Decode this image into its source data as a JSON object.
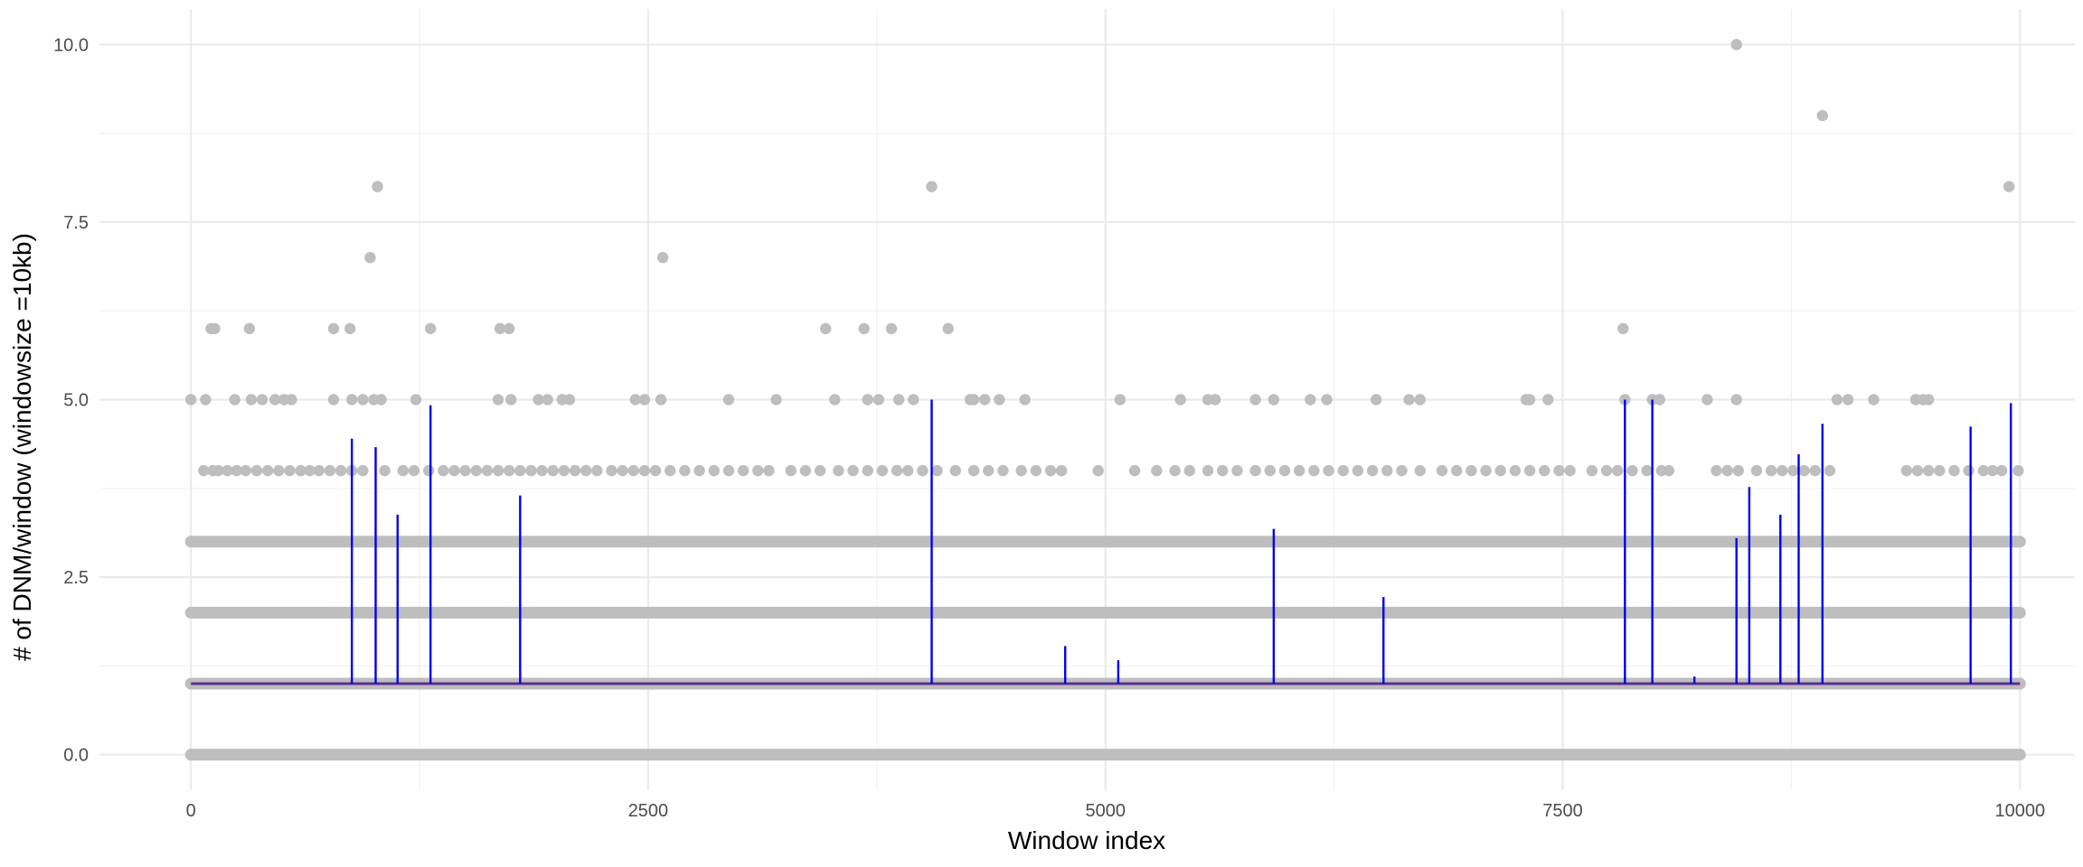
{
  "chart_data": {
    "type": "scatter",
    "title": "",
    "xlabel": "Window index",
    "ylabel": "# of DNM/window (windowsize =10kb)",
    "xlim": [
      -500,
      10300
    ],
    "ylim": [
      -0.5,
      10.5
    ],
    "x_ticks": [
      0,
      2500,
      5000,
      7500,
      10000
    ],
    "x_tick_labels": [
      "0",
      "2500",
      "5000",
      "7500",
      "10000"
    ],
    "y_ticks": [
      0,
      2.5,
      5,
      7.5,
      10
    ],
    "y_tick_labels": [
      "0.0",
      "2.5",
      "5.0",
      "7.5",
      "10.0"
    ],
    "grid": true,
    "colors": {
      "points": "#bebebe",
      "spikes": "#0000ee",
      "baseline": "#5c2d91",
      "grid": "#ebebeb"
    },
    "baseline_value": 1,
    "dense_levels": [
      0,
      1,
      2,
      3
    ],
    "series": [
      {
        "type": "scatter",
        "points": [
          [
            0,
            5
          ],
          [
            80,
            5
          ],
          [
            110,
            6
          ],
          [
            130,
            6
          ],
          [
            240,
            5
          ],
          [
            320,
            6
          ],
          [
            330,
            5
          ],
          [
            390,
            5
          ],
          [
            460,
            5
          ],
          [
            510,
            5
          ],
          [
            550,
            5
          ],
          [
            780,
            5
          ],
          [
            780,
            6
          ],
          [
            870,
            6
          ],
          [
            880,
            5
          ],
          [
            940,
            5
          ],
          [
            980,
            7
          ],
          [
            1000,
            5
          ],
          [
            1020,
            8
          ],
          [
            1040,
            5
          ],
          [
            1230,
            5
          ],
          [
            1310,
            6
          ],
          [
            1680,
            5
          ],
          [
            1690,
            6
          ],
          [
            1740,
            6
          ],
          [
            1750,
            5
          ],
          [
            1900,
            5
          ],
          [
            1950,
            5
          ],
          [
            2030,
            5
          ],
          [
            2070,
            5
          ],
          [
            2430,
            5
          ],
          [
            2480,
            5
          ],
          [
            2570,
            5
          ],
          [
            2580,
            7
          ],
          [
            2940,
            5
          ],
          [
            3200,
            5
          ],
          [
            3470,
            6
          ],
          [
            3520,
            5
          ],
          [
            3680,
            6
          ],
          [
            3700,
            5
          ],
          [
            3760,
            5
          ],
          [
            3830,
            6
          ],
          [
            3870,
            5
          ],
          [
            3950,
            5
          ],
          [
            4050,
            8
          ],
          [
            4140,
            6
          ],
          [
            4260,
            5
          ],
          [
            4280,
            5
          ],
          [
            4340,
            5
          ],
          [
            4420,
            5
          ],
          [
            4560,
            5
          ],
          [
            5080,
            5
          ],
          [
            5410,
            5
          ],
          [
            5560,
            5
          ],
          [
            5600,
            5
          ],
          [
            5820,
            5
          ],
          [
            5920,
            5
          ],
          [
            6120,
            5
          ],
          [
            6210,
            5
          ],
          [
            6480,
            5
          ],
          [
            6660,
            5
          ],
          [
            6720,
            5
          ],
          [
            7300,
            5
          ],
          [
            7320,
            5
          ],
          [
            7420,
            5
          ],
          [
            7830,
            6
          ],
          [
            7840,
            5
          ],
          [
            7990,
            5
          ],
          [
            8030,
            5
          ],
          [
            8290,
            5
          ],
          [
            8450,
            10
          ],
          [
            8450,
            5
          ],
          [
            8920,
            9
          ],
          [
            9000,
            5
          ],
          [
            9060,
            5
          ],
          [
            9200,
            5
          ],
          [
            9430,
            5
          ],
          [
            9470,
            5
          ],
          [
            9500,
            5
          ],
          [
            9940,
            8
          ],
          [
            70,
            4
          ],
          [
            120,
            4
          ],
          [
            150,
            4
          ],
          [
            200,
            4
          ],
          [
            250,
            4
          ],
          [
            300,
            4
          ],
          [
            360,
            4
          ],
          [
            420,
            4
          ],
          [
            480,
            4
          ],
          [
            540,
            4
          ],
          [
            600,
            4
          ],
          [
            650,
            4
          ],
          [
            700,
            4
          ],
          [
            760,
            4
          ],
          [
            820,
            4
          ],
          [
            880,
            4
          ],
          [
            940,
            4
          ],
          [
            1060,
            4
          ],
          [
            1160,
            4
          ],
          [
            1220,
            4
          ],
          [
            1300,
            4
          ],
          [
            1380,
            4
          ],
          [
            1440,
            4
          ],
          [
            1500,
            4
          ],
          [
            1560,
            4
          ],
          [
            1620,
            4
          ],
          [
            1680,
            4
          ],
          [
            1740,
            4
          ],
          [
            1800,
            4
          ],
          [
            1860,
            4
          ],
          [
            1920,
            4
          ],
          [
            1980,
            4
          ],
          [
            2040,
            4
          ],
          [
            2100,
            4
          ],
          [
            2160,
            4
          ],
          [
            2220,
            4
          ],
          [
            2300,
            4
          ],
          [
            2360,
            4
          ],
          [
            2420,
            4
          ],
          [
            2480,
            4
          ],
          [
            2540,
            4
          ],
          [
            2620,
            4
          ],
          [
            2700,
            4
          ],
          [
            2780,
            4
          ],
          [
            2860,
            4
          ],
          [
            2940,
            4
          ],
          [
            3020,
            4
          ],
          [
            3100,
            4
          ],
          [
            3160,
            4
          ],
          [
            3280,
            4
          ],
          [
            3360,
            4
          ],
          [
            3440,
            4
          ],
          [
            3540,
            4
          ],
          [
            3620,
            4
          ],
          [
            3700,
            4
          ],
          [
            3780,
            4
          ],
          [
            3860,
            4
          ],
          [
            3920,
            4
          ],
          [
            4000,
            4
          ],
          [
            4080,
            4
          ],
          [
            4180,
            4
          ],
          [
            4280,
            4
          ],
          [
            4360,
            4
          ],
          [
            4440,
            4
          ],
          [
            4540,
            4
          ],
          [
            4620,
            4
          ],
          [
            4700,
            4
          ],
          [
            4760,
            4
          ],
          [
            4960,
            4
          ],
          [
            5160,
            4
          ],
          [
            5280,
            4
          ],
          [
            5380,
            4
          ],
          [
            5460,
            4
          ],
          [
            5560,
            4
          ],
          [
            5640,
            4
          ],
          [
            5720,
            4
          ],
          [
            5820,
            4
          ],
          [
            5900,
            4
          ],
          [
            5980,
            4
          ],
          [
            6060,
            4
          ],
          [
            6140,
            4
          ],
          [
            6220,
            4
          ],
          [
            6300,
            4
          ],
          [
            6380,
            4
          ],
          [
            6460,
            4
          ],
          [
            6540,
            4
          ],
          [
            6620,
            4
          ],
          [
            6720,
            4
          ],
          [
            6840,
            4
          ],
          [
            6920,
            4
          ],
          [
            7000,
            4
          ],
          [
            7080,
            4
          ],
          [
            7160,
            4
          ],
          [
            7240,
            4
          ],
          [
            7320,
            4
          ],
          [
            7400,
            4
          ],
          [
            7480,
            4
          ],
          [
            7540,
            4
          ],
          [
            7660,
            4
          ],
          [
            7740,
            4
          ],
          [
            7800,
            4
          ],
          [
            7880,
            4
          ],
          [
            7960,
            4
          ],
          [
            8040,
            4
          ],
          [
            8080,
            4
          ],
          [
            8340,
            4
          ],
          [
            8400,
            4
          ],
          [
            8460,
            4
          ],
          [
            8560,
            4
          ],
          [
            8640,
            4
          ],
          [
            8700,
            4
          ],
          [
            8760,
            4
          ],
          [
            8820,
            4
          ],
          [
            8880,
            4
          ],
          [
            8960,
            4
          ],
          [
            9380,
            4
          ],
          [
            9440,
            4
          ],
          [
            9500,
            4
          ],
          [
            9560,
            4
          ],
          [
            9640,
            4
          ],
          [
            9720,
            4
          ],
          [
            9800,
            4
          ],
          [
            9850,
            4
          ],
          [
            9900,
            4
          ],
          [
            9990,
            4
          ]
        ]
      },
      {
        "type": "spikes",
        "x": [
          880,
          1010,
          1130,
          1310,
          1800,
          4050,
          4780,
          5070,
          5920,
          6520,
          7840,
          7990,
          8220,
          8450,
          8520,
          8690,
          8790,
          8920,
          9730,
          9950
        ],
        "values": [
          4.45,
          4.33,
          3.38,
          4.92,
          3.65,
          5.0,
          1.53,
          1.33,
          3.18,
          2.22,
          5.0,
          5.0,
          1.1,
          3.05,
          3.77,
          3.38,
          4.23,
          4.66,
          4.62,
          4.95
        ]
      }
    ]
  }
}
